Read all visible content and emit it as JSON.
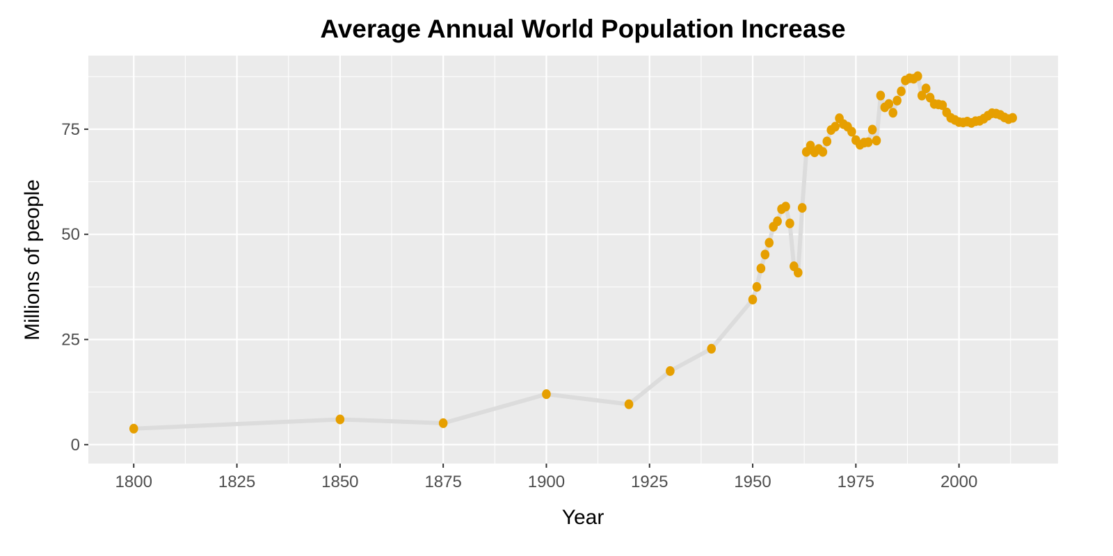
{
  "chart_data": {
    "type": "line",
    "title": "Average Annual World Population Increase",
    "xlabel": "Year",
    "ylabel": "Millions of people",
    "xlim": [
      1789,
      2024
    ],
    "ylim": [
      -4.5,
      92.5
    ],
    "x_ticks": [
      1800,
      1825,
      1850,
      1875,
      1900,
      1925,
      1950,
      1975,
      2000
    ],
    "x_tick_labels": [
      "1800",
      "1825",
      "1850",
      "1875",
      "1900",
      "1925",
      "1950",
      "1975",
      "2000"
    ],
    "y_ticks": [
      0,
      25,
      50,
      75
    ],
    "y_tick_labels": [
      "0",
      "25",
      "50",
      "75"
    ],
    "grid": true,
    "legend": "none",
    "colors": {
      "points": "#E69F00",
      "line": "#DCDCDC",
      "panel": "#EBEBEB",
      "grid": "#FFFFFF"
    },
    "series": [
      {
        "name": "Population increase",
        "x": [
          1800,
          1850,
          1875,
          1900,
          1920,
          1930,
          1940,
          1950,
          1951,
          1952,
          1953,
          1954,
          1955,
          1956,
          1957,
          1958,
          1959,
          1960,
          1961,
          1962,
          1963,
          1964,
          1965,
          1966,
          1967,
          1968,
          1969,
          1970,
          1971,
          1972,
          1973,
          1974,
          1975,
          1976,
          1977,
          1978,
          1979,
          1980,
          1981,
          1982,
          1983,
          1984,
          1985,
          1986,
          1987,
          1988,
          1989,
          1990,
          1991,
          1992,
          1993,
          1994,
          1995,
          1996,
          1997,
          1998,
          1999,
          2000,
          2001,
          2002,
          2003,
          2004,
          2005,
          2006,
          2007,
          2008,
          2009,
          2010,
          2011,
          2012,
          2013
        ],
        "y": [
          3.8,
          6.0,
          5.1,
          12.0,
          9.6,
          17.5,
          22.8,
          34.5,
          37.5,
          41.9,
          45.2,
          48.0,
          51.8,
          53.1,
          56.0,
          56.6,
          52.6,
          42.4,
          40.9,
          56.3,
          69.6,
          71.1,
          69.5,
          70.3,
          69.6,
          72.1,
          74.8,
          75.6,
          77.6,
          76.2,
          75.6,
          74.4,
          72.4,
          71.3,
          71.8,
          71.9,
          74.9,
          72.3,
          83.0,
          80.2,
          81.0,
          78.9,
          81.8,
          84.0,
          86.6,
          87.1,
          87.0,
          87.6,
          83.0,
          84.7,
          82.5,
          81.0,
          80.9,
          80.7,
          79.0,
          77.7,
          77.2,
          76.7,
          76.6,
          76.8,
          76.5,
          76.9,
          77.0,
          77.5,
          78.2,
          78.8,
          78.7,
          78.4,
          77.8,
          77.4,
          77.7
        ]
      }
    ]
  }
}
